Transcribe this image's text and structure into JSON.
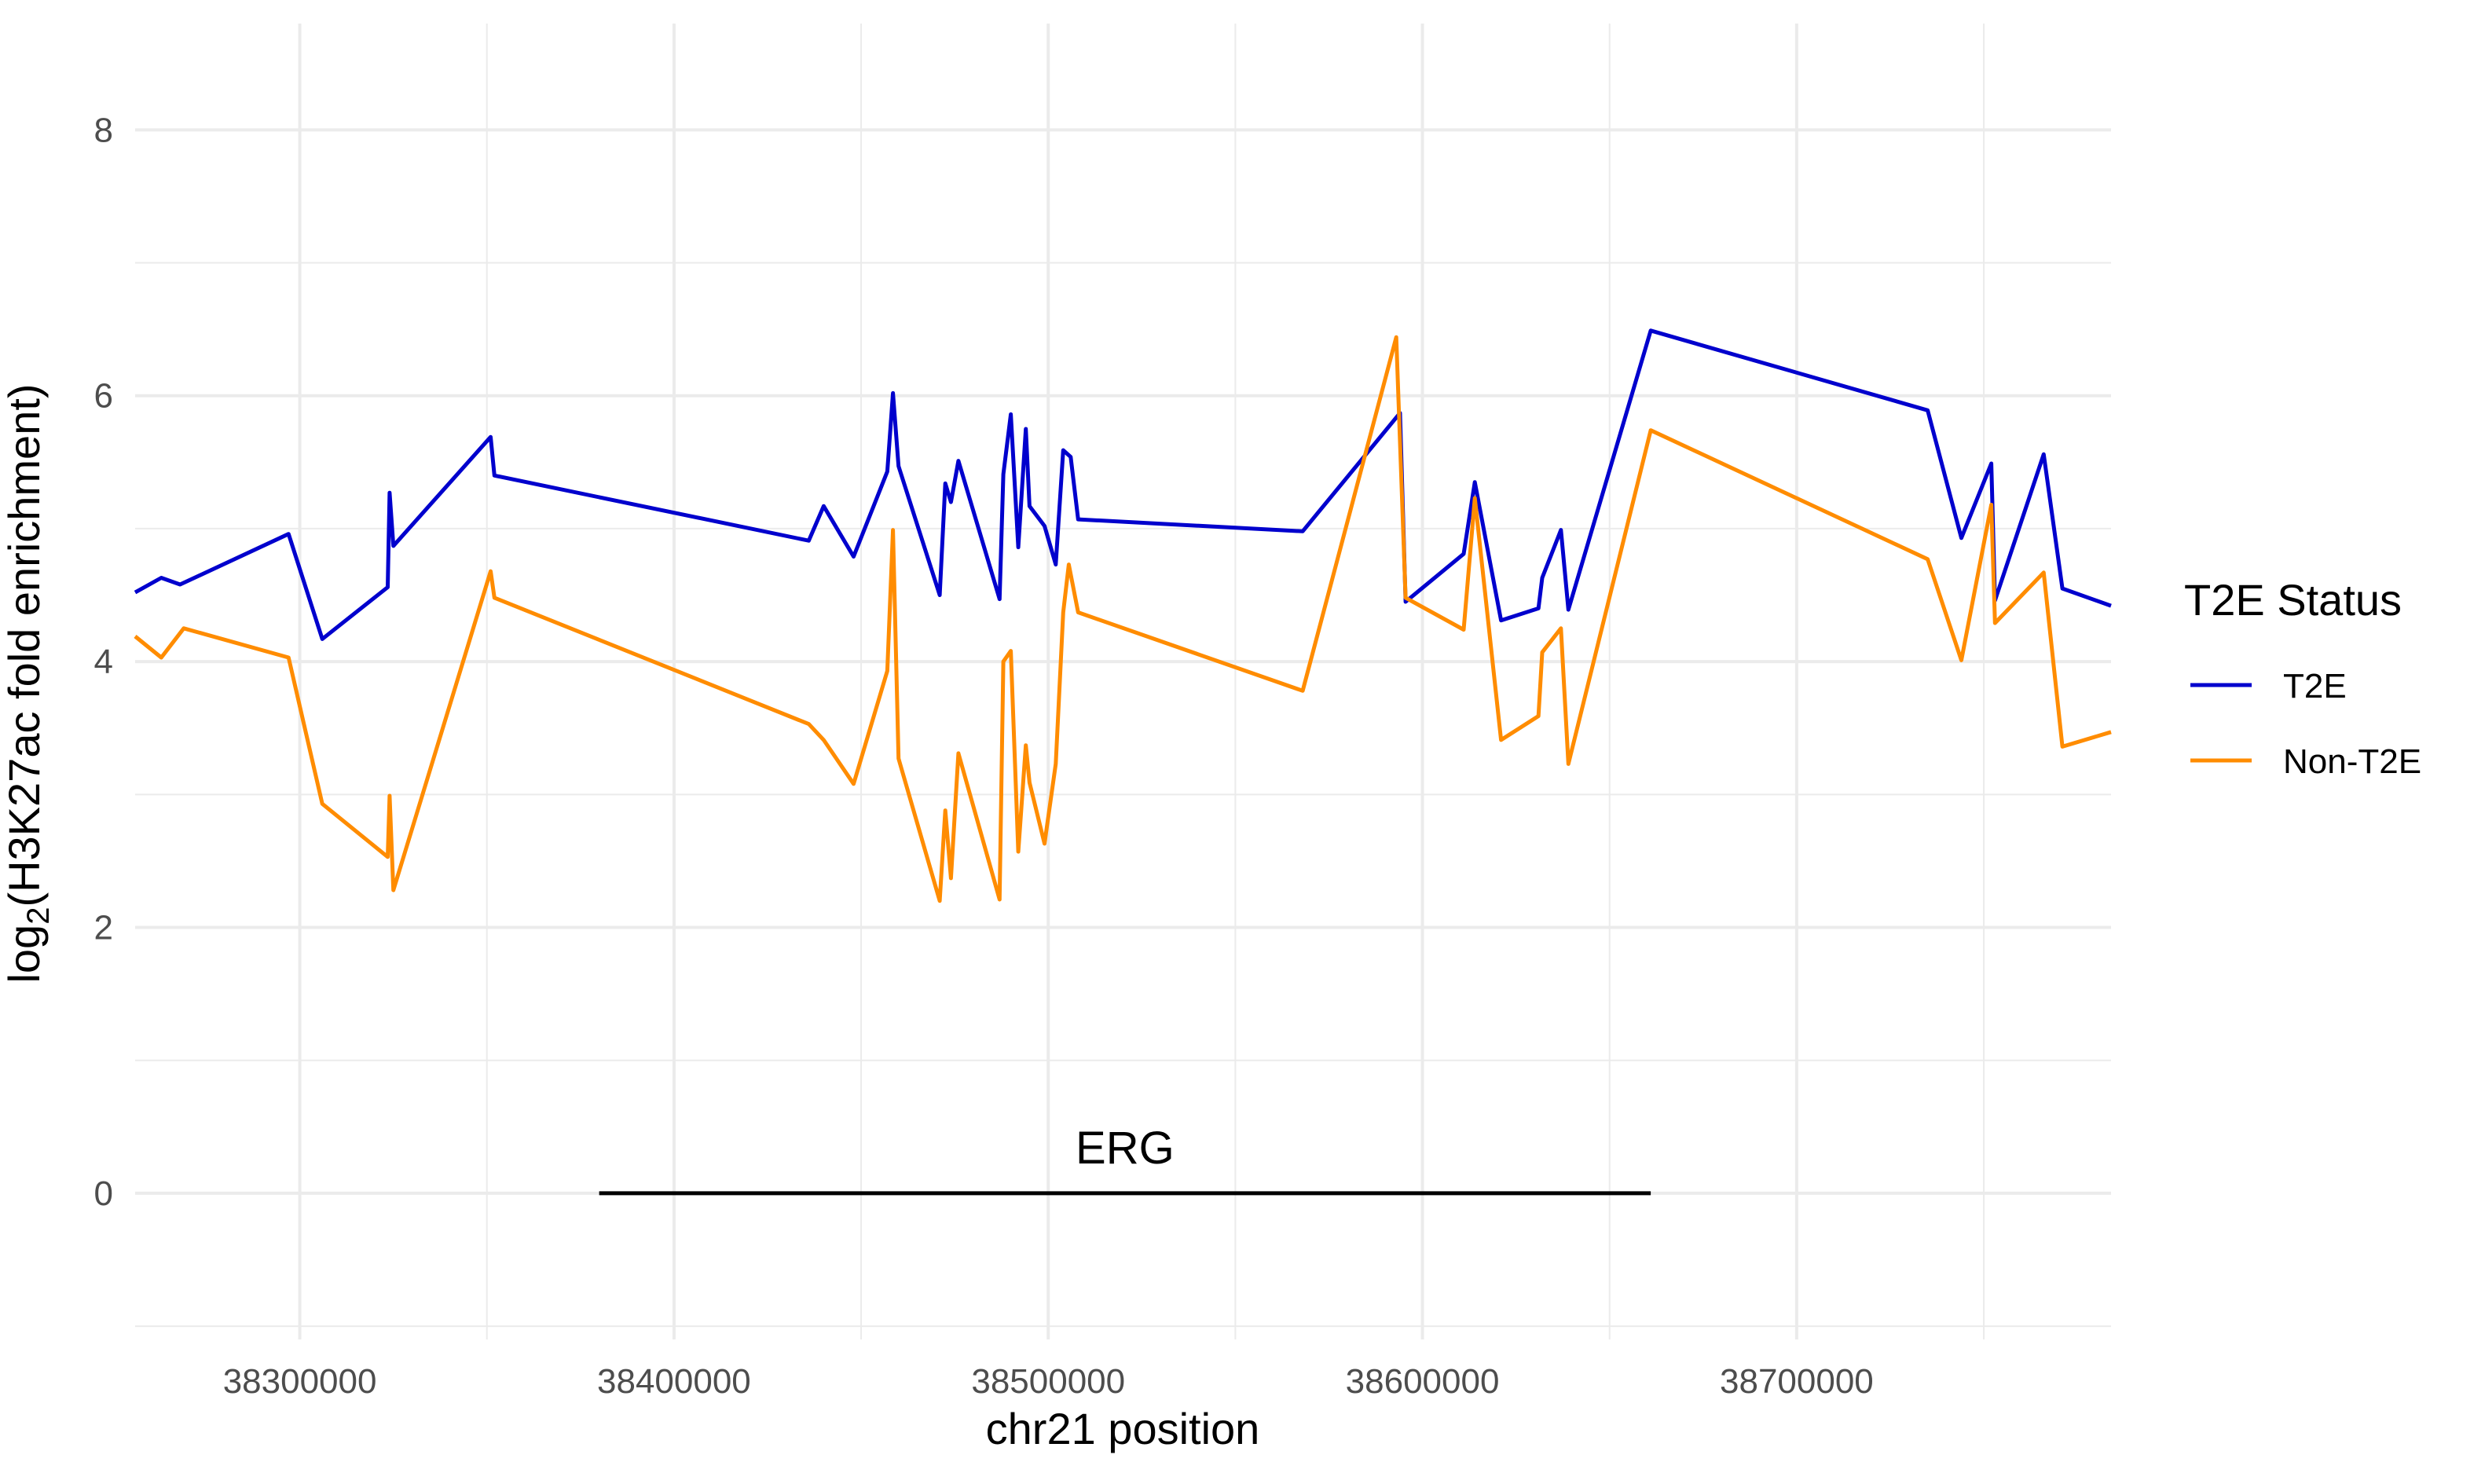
{
  "chart_data": {
    "type": "line",
    "title": "",
    "xlabel": "chr21 position",
    "ylabel_main": "log",
    "ylabel_sub": "2",
    "ylabel_rest": "(H3K27ac fold enrichment)",
    "xlim": [
      38256000,
      38784000
    ],
    "ylim": [
      -1.1,
      8.8
    ],
    "x_ticks": [
      38300000,
      38400000,
      38500000,
      38600000,
      38700000
    ],
    "x_tick_labels": [
      "38300000",
      "38400000",
      "38500000",
      "38600000",
      "38700000"
    ],
    "y_ticks": [
      0,
      2,
      4,
      6,
      8
    ],
    "y_tick_labels": [
      "0",
      "2",
      "4",
      "6",
      "8"
    ],
    "grid": true,
    "legend": {
      "title": "T2E Status",
      "position": "right",
      "entries": [
        {
          "label": "T2E",
          "color": "#0000CD"
        },
        {
          "label": "Non-T2E",
          "color": "#FF8C00"
        }
      ]
    },
    "series": [
      {
        "name": "T2E",
        "color": "#0000CD",
        "points": [
          [
            38256000,
            4.52
          ],
          [
            38263000,
            4.63
          ],
          [
            38268000,
            4.58
          ],
          [
            38297000,
            4.96
          ],
          [
            38306000,
            4.17
          ],
          [
            38323500,
            4.56
          ],
          [
            38324000,
            5.27
          ],
          [
            38325000,
            4.87
          ],
          [
            38351000,
            5.69
          ],
          [
            38352000,
            5.4
          ],
          [
            38436000,
            4.91
          ],
          [
            38440000,
            5.17
          ],
          [
            38448000,
            4.79
          ],
          [
            38457000,
            5.43
          ],
          [
            38458500,
            6.02
          ],
          [
            38460000,
            5.47
          ],
          [
            38471000,
            4.5
          ],
          [
            38472500,
            5.34
          ],
          [
            38474000,
            5.2
          ],
          [
            38476000,
            5.51
          ],
          [
            38487000,
            4.47
          ],
          [
            38488000,
            5.41
          ],
          [
            38490000,
            5.86
          ],
          [
            38492000,
            4.86
          ],
          [
            38494000,
            5.75
          ],
          [
            38495000,
            5.17
          ],
          [
            38499000,
            5.02
          ],
          [
            38502000,
            4.73
          ],
          [
            38504000,
            5.59
          ],
          [
            38506000,
            5.54
          ],
          [
            38508000,
            5.07
          ],
          [
            38568000,
            4.98
          ],
          [
            38594000,
            5.87
          ],
          [
            38595500,
            4.45
          ],
          [
            38611000,
            4.81
          ],
          [
            38614000,
            5.35
          ],
          [
            38621000,
            4.31
          ],
          [
            38631000,
            4.4
          ],
          [
            38632000,
            4.63
          ],
          [
            38637000,
            4.99
          ],
          [
            38639000,
            4.39
          ],
          [
            38661000,
            6.49
          ],
          [
            38735000,
            5.89
          ],
          [
            38744000,
            4.93
          ],
          [
            38752000,
            5.49
          ],
          [
            38753000,
            4.46
          ],
          [
            38766000,
            5.56
          ],
          [
            38771000,
            4.55
          ],
          [
            38784000,
            4.42
          ]
        ]
      },
      {
        "name": "Non-T2E",
        "color": "#FF8C00",
        "points": [
          [
            38256000,
            4.19
          ],
          [
            38263000,
            4.03
          ],
          [
            38269000,
            4.25
          ],
          [
            38297000,
            4.03
          ],
          [
            38306000,
            2.93
          ],
          [
            38323500,
            2.53
          ],
          [
            38324000,
            2.99
          ],
          [
            38325000,
            2.28
          ],
          [
            38351000,
            4.68
          ],
          [
            38352000,
            4.48
          ],
          [
            38436000,
            3.53
          ],
          [
            38440000,
            3.41
          ],
          [
            38448000,
            3.08
          ],
          [
            38457000,
            3.93
          ],
          [
            38458500,
            4.99
          ],
          [
            38460000,
            3.27
          ],
          [
            38471000,
            2.2
          ],
          [
            38472500,
            2.88
          ],
          [
            38474000,
            2.37
          ],
          [
            38476000,
            3.31
          ],
          [
            38487000,
            2.21
          ],
          [
            38488000,
            4.0
          ],
          [
            38490000,
            4.08
          ],
          [
            38492000,
            2.57
          ],
          [
            38494000,
            3.37
          ],
          [
            38495000,
            3.09
          ],
          [
            38499000,
            2.63
          ],
          [
            38502000,
            3.23
          ],
          [
            38504000,
            4.37
          ],
          [
            38505500,
            4.73
          ],
          [
            38508000,
            4.37
          ],
          [
            38568000,
            3.78
          ],
          [
            38593000,
            6.44
          ],
          [
            38595500,
            4.48
          ],
          [
            38611000,
            4.24
          ],
          [
            38614000,
            5.23
          ],
          [
            38621000,
            3.41
          ],
          [
            38631000,
            3.59
          ],
          [
            38632000,
            4.07
          ],
          [
            38637000,
            4.25
          ],
          [
            38639000,
            3.23
          ],
          [
            38661000,
            5.74
          ],
          [
            38735000,
            4.77
          ],
          [
            38744000,
            4.01
          ],
          [
            38752000,
            5.18
          ],
          [
            38753000,
            4.29
          ],
          [
            38766000,
            4.67
          ],
          [
            38771000,
            3.36
          ],
          [
            38784000,
            3.47
          ]
        ]
      }
    ],
    "annotations": [
      {
        "type": "gene",
        "label": "ERG",
        "x_start": 38380000,
        "x_end": 38661000,
        "y": 0
      }
    ]
  }
}
